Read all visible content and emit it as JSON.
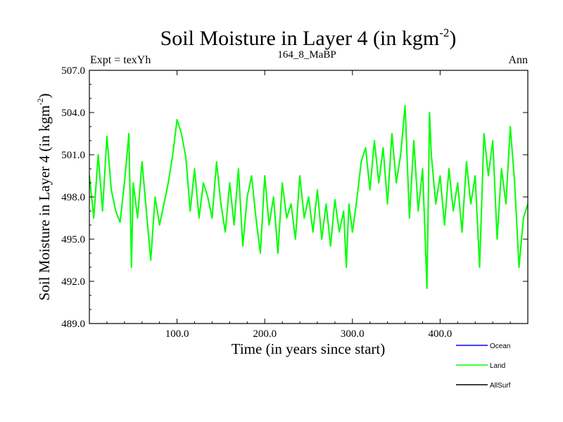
{
  "header": {
    "title": "Soil Moisture in Layer 4 (in kgm",
    "title_sup": "-2",
    "title_tail": ")",
    "left_label": "Expt = texYh",
    "center_label": "164_8_MaBP",
    "right_label": "Ann"
  },
  "chart_data": {
    "type": "line",
    "xlabel": "Time (in years since start)",
    "ylabel": "Soil Moisture in Layer 4 (in kgm",
    "ylabel_sup": "-2",
    "ylabel_tail": ")",
    "xlim": [
      0,
      500
    ],
    "ylim": [
      489.0,
      507.0
    ],
    "x_ticks": [
      100,
      200,
      300,
      400
    ],
    "x_tick_labels": [
      "100.0",
      "200.0",
      "300.0",
      "400.0"
    ],
    "y_ticks": [
      489.0,
      492.0,
      495.0,
      498.0,
      501.0,
      504.0,
      507.0
    ],
    "y_tick_labels": [
      "489.0",
      "492.0",
      "495.0",
      "498.0",
      "501.0",
      "504.0",
      "507.0"
    ],
    "grid": false,
    "legend_position": "bottom-right, below plot",
    "series": [
      {
        "name": "Ocean",
        "color": "#0000ff",
        "x": [],
        "y": []
      },
      {
        "name": "Land",
        "color": "#00ff00",
        "x": [
          0,
          5,
          10,
          15,
          20,
          25,
          30,
          35,
          40,
          45,
          48,
          50,
          55,
          60,
          65,
          70,
          75,
          80,
          85,
          90,
          95,
          100,
          105,
          110,
          115,
          120,
          125,
          130,
          135,
          140,
          145,
          150,
          155,
          160,
          165,
          170,
          175,
          180,
          185,
          190,
          195,
          200,
          205,
          210,
          215,
          220,
          225,
          230,
          235,
          240,
          245,
          250,
          255,
          260,
          265,
          270,
          275,
          280,
          285,
          290,
          293,
          296,
          300,
          305,
          310,
          315,
          320,
          325,
          330,
          335,
          340,
          345,
          350,
          355,
          360,
          365,
          370,
          375,
          380,
          383,
          385,
          388,
          390,
          395,
          400,
          405,
          410,
          415,
          420,
          425,
          430,
          435,
          440,
          445,
          450,
          455,
          460,
          465,
          470,
          475,
          480,
          485,
          490,
          495,
          500
        ],
        "y": [
          499.5,
          496.5,
          501.0,
          497.0,
          502.3,
          498.5,
          497.0,
          496.2,
          499.0,
          502.5,
          493.0,
          499.0,
          496.5,
          500.5,
          497.0,
          493.5,
          498.0,
          496.0,
          497.5,
          499.0,
          501.0,
          503.5,
          502.5,
          500.8,
          497.0,
          500.0,
          496.5,
          499.0,
          498.0,
          496.5,
          500.5,
          497.5,
          495.5,
          499.0,
          496.0,
          500.0,
          494.5,
          498.0,
          499.5,
          496.5,
          494.0,
          499.5,
          496.0,
          498.0,
          494.0,
          499.0,
          496.5,
          497.5,
          495.0,
          499.5,
          496.5,
          498.0,
          495.5,
          498.5,
          495.0,
          497.5,
          494.5,
          497.8,
          495.5,
          497.0,
          493.0,
          497.5,
          495.5,
          497.8,
          500.5,
          501.5,
          498.5,
          502.0,
          499.0,
          501.5,
          497.5,
          502.5,
          499.0,
          501.0,
          504.5,
          496.5,
          502.0,
          497.0,
          500.0,
          495.0,
          491.5,
          504.0,
          501.0,
          497.5,
          499.5,
          496.0,
          500.0,
          497.0,
          499.0,
          495.5,
          500.5,
          497.5,
          499.5,
          493.0,
          502.5,
          499.5,
          502.0,
          495.0,
          500.0,
          497.5,
          503.0,
          499.0,
          493.0,
          496.5,
          497.5
        ]
      },
      {
        "name": "AllSurf",
        "color": "#000000",
        "x": [],
        "y": []
      }
    ]
  }
}
